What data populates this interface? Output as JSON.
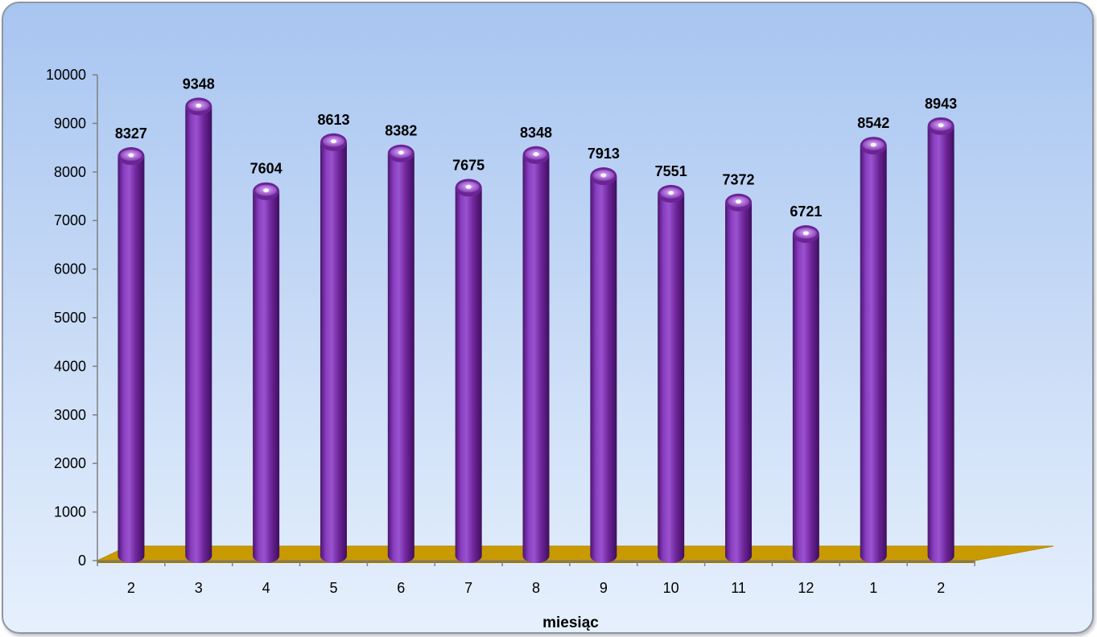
{
  "chart_data": {
    "type": "bar",
    "title": "",
    "xlabel": "miesiąc",
    "ylabel": "",
    "categories": [
      "2",
      "3",
      "4",
      "5",
      "6",
      "7",
      "8",
      "9",
      "10",
      "11",
      "12",
      "1",
      "2"
    ],
    "values": [
      8327,
      9348,
      7604,
      8613,
      8382,
      7675,
      8348,
      7913,
      7551,
      7372,
      6721,
      8542,
      8943
    ],
    "ylim": [
      0,
      10000
    ],
    "yticks": [
      0,
      1000,
      2000,
      3000,
      4000,
      5000,
      6000,
      7000,
      8000,
      9000,
      10000
    ],
    "grid": false,
    "legend": "none",
    "bar_color": "#7b2fa6",
    "floor_color": "#c99a00",
    "background_top": "#a8c5f1",
    "background_bottom": "#e6f0fd"
  }
}
